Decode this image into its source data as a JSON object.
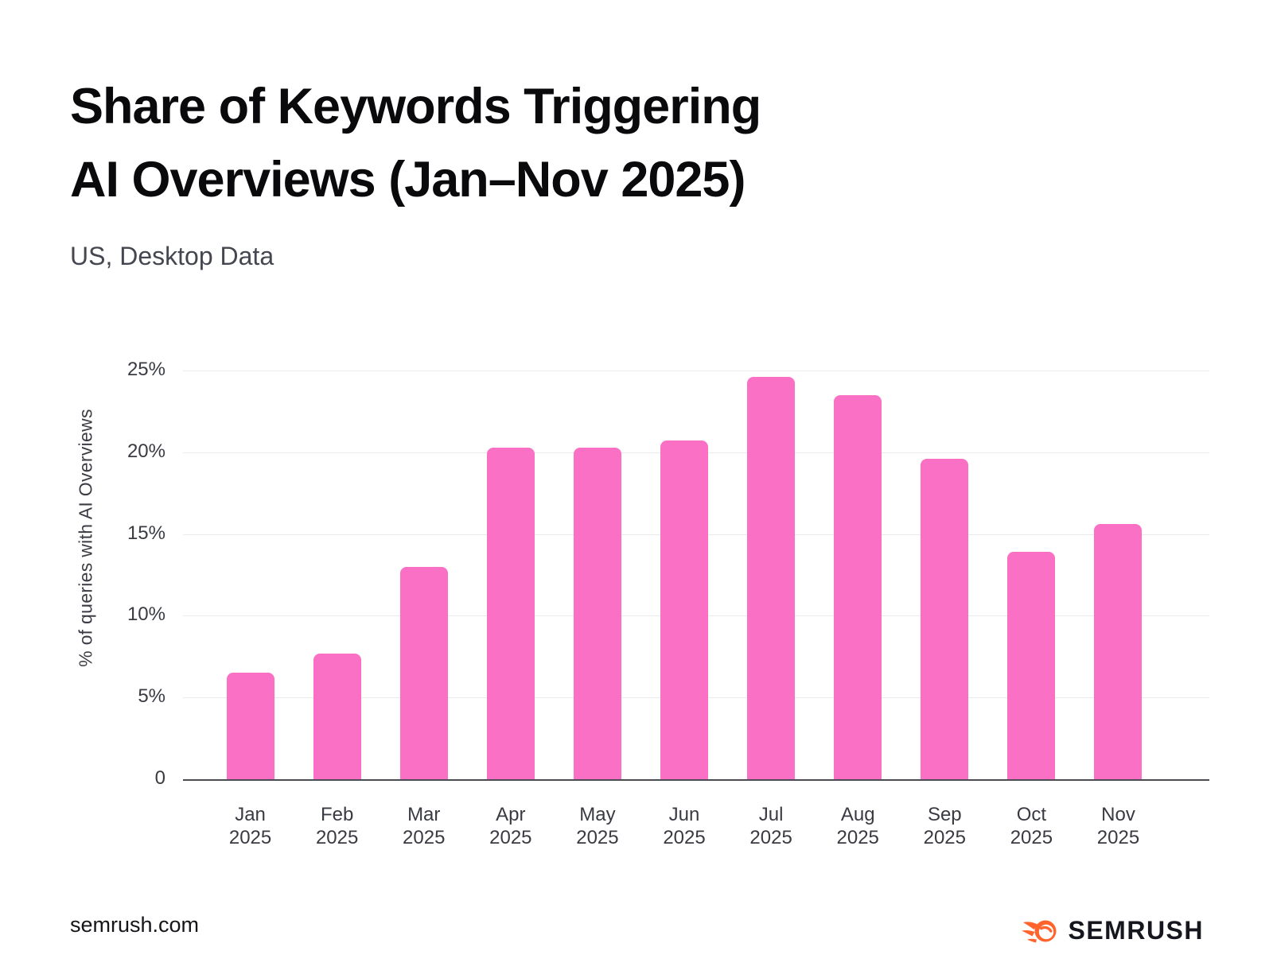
{
  "page": {
    "title": "Share of Keywords Triggering\nAI Overviews (Jan–Nov 2025)",
    "subtitle": "US, Desktop Data",
    "footer_left": "semrush.com",
    "brand": {
      "logo_text": "SEMRUSH",
      "logo_icon": "semrush-flame-icon",
      "orange": "#FF642D",
      "text_color": "#16161E"
    }
  },
  "chart_data": {
    "type": "bar",
    "title": "Share of Keywords Triggering AI Overviews (Jan–Nov 2025)",
    "subtitle": "US, Desktop Data",
    "categories": [
      {
        "month": "Jan",
        "year": "2025"
      },
      {
        "month": "Feb",
        "year": "2025"
      },
      {
        "month": "Mar",
        "year": "2025"
      },
      {
        "month": "Apr",
        "year": "2025"
      },
      {
        "month": "May",
        "year": "2025"
      },
      {
        "month": "Jun",
        "year": "2025"
      },
      {
        "month": "Jul",
        "year": "2025"
      },
      {
        "month": "Aug",
        "year": "2025"
      },
      {
        "month": "Sep",
        "year": "2025"
      },
      {
        "month": "Oct",
        "year": "2025"
      },
      {
        "month": "Nov",
        "year": "2025"
      }
    ],
    "values": [
      6.5,
      7.7,
      13.0,
      20.3,
      20.3,
      20.7,
      24.6,
      23.5,
      19.6,
      13.9,
      15.6
    ],
    "xlabel": "",
    "ylabel": "% of queries with AI Overviews",
    "ylim": [
      0,
      25
    ],
    "y_ticks": [
      {
        "label": "25%",
        "value": 25
      },
      {
        "label": "20%",
        "value": 20
      },
      {
        "label": "15%",
        "value": 15
      },
      {
        "label": "10%",
        "value": 10
      },
      {
        "label": "5%",
        "value": 5
      },
      {
        "label": "0",
        "value": 0
      }
    ],
    "grid": true,
    "legend": "none",
    "bar_color": "#F970C5",
    "grid_color": "#EAEAEE",
    "axis_color": "#4B4B52",
    "tick_color": "#3A3B42"
  }
}
